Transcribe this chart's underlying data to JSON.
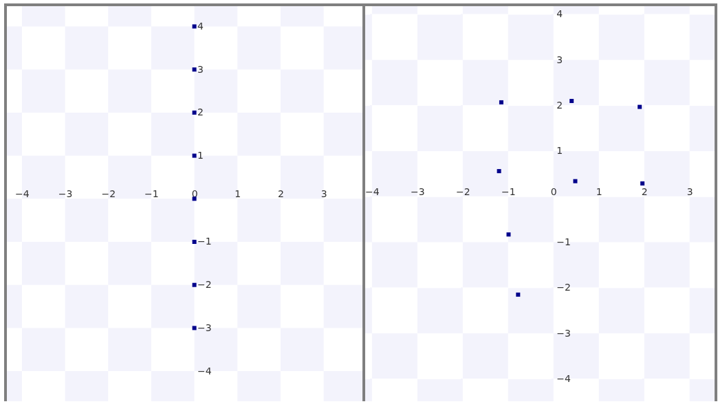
{
  "chart_data": [
    {
      "type": "scatter",
      "x": [
        0,
        0,
        0,
        0,
        0,
        0,
        0,
        0
      ],
      "marker": "square",
      "xlim": [
        -4.35,
        3.9
      ],
      "ylim": [
        -4.7,
        4.47
      ],
      "xticks": [
        -4,
        -3,
        -2,
        -1,
        0,
        1,
        2,
        3
      ],
      "yticks": [
        -4,
        -3,
        -2,
        -1,
        1,
        2,
        3,
        4
      ],
      "series": [
        {
          "color": "#00008b",
          "values": [
            4,
            3,
            2,
            1,
            0,
            -1,
            -2,
            -3
          ]
        }
      ]
    },
    {
      "type": "scatter",
      "x": [
        -1.15,
        0.4,
        1.9,
        -1.2,
        0.48,
        1.96,
        -0.99,
        -0.78
      ],
      "marker": "square",
      "xlim": [
        -4.15,
        3.55
      ],
      "ylim": [
        -4.49,
        4.18
      ],
      "xticks": [
        -4,
        -3,
        -2,
        -1,
        0,
        1,
        2,
        3
      ],
      "yticks": [
        -4,
        -3,
        -2,
        -1,
        1,
        2,
        3,
        4
      ],
      "series": [
        {
          "color": "#00008b",
          "values": [
            2.07,
            2.1,
            1.97,
            0.56,
            0.34,
            0.29,
            -0.83,
            -2.15
          ]
        }
      ]
    }
  ]
}
